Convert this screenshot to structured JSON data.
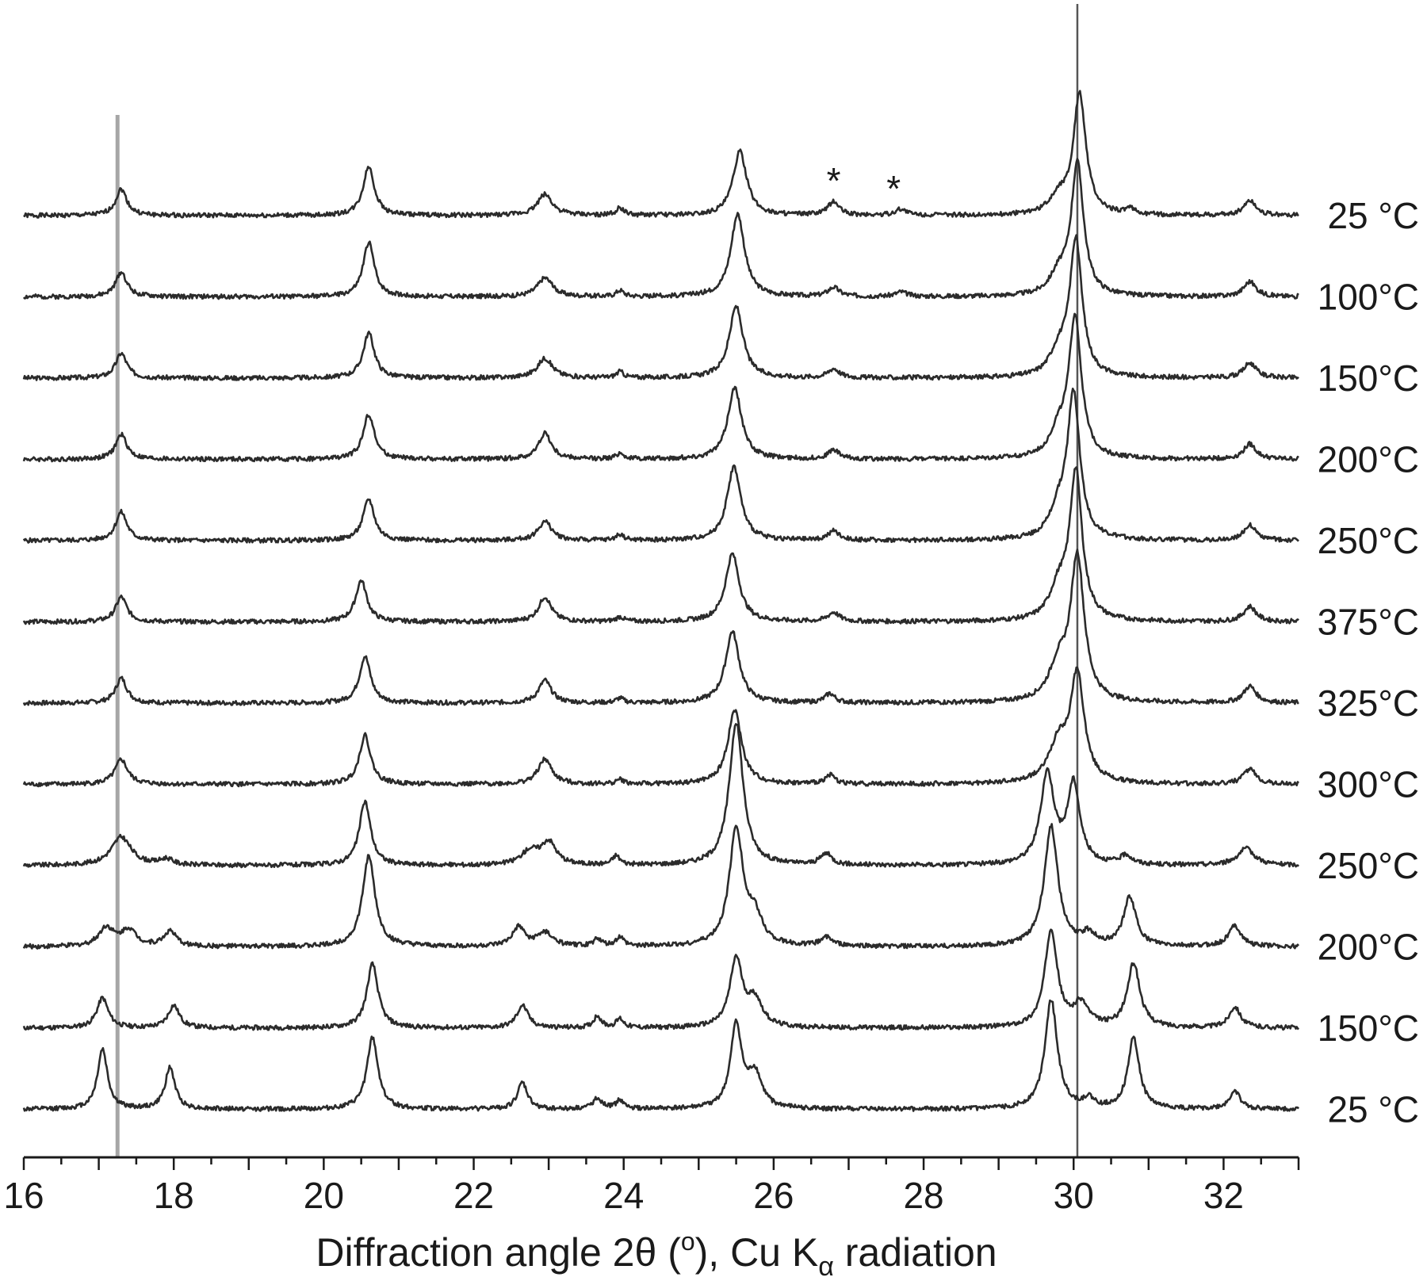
{
  "chart_data": {
    "type": "line",
    "title": "",
    "xlabel": {
      "parts": [
        "Diffraction angle 2θ (",
        "o",
        "), Cu K",
        "α",
        " radiation"
      ]
    },
    "ylabel": "",
    "xlim": [
      16,
      33
    ],
    "x_ticks": [
      16,
      18,
      20,
      22,
      24,
      26,
      28,
      30,
      32
    ],
    "grid": false,
    "legend": "none",
    "reference_lines_x": [
      17.25,
      30.05
    ],
    "reference_line_colors": [
      "#a6a6a6",
      "#555555"
    ],
    "asterisks": [
      {
        "text": "*",
        "x": 26.8
      },
      {
        "text": "*",
        "x": 27.6
      }
    ],
    "line_color": "#2b2b2b",
    "series": [
      {
        "name": "25 °C",
        "peaks": [
          [
            17.3,
            0.35,
            0.09
          ],
          [
            20.6,
            0.65,
            0.09
          ],
          [
            22.95,
            0.28,
            0.12
          ],
          [
            23.95,
            0.1,
            0.06
          ],
          [
            25.55,
            0.85,
            0.11
          ],
          [
            26.8,
            0.18,
            0.09
          ],
          [
            27.7,
            0.08,
            0.09
          ],
          [
            29.8,
            0.22,
            0.14
          ],
          [
            30.08,
            1.6,
            0.1
          ],
          [
            30.75,
            0.07,
            0.08
          ],
          [
            32.35,
            0.2,
            0.1
          ]
        ]
      },
      {
        "name": "100°C",
        "peaks": [
          [
            17.3,
            0.33,
            0.09
          ],
          [
            20.6,
            0.72,
            0.09
          ],
          [
            22.95,
            0.25,
            0.12
          ],
          [
            23.95,
            0.08,
            0.06
          ],
          [
            25.52,
            1.1,
            0.11
          ],
          [
            26.8,
            0.12,
            0.09
          ],
          [
            27.7,
            0.06,
            0.09
          ],
          [
            29.8,
            0.25,
            0.14
          ],
          [
            30.05,
            1.75,
            0.1
          ],
          [
            32.35,
            0.2,
            0.1
          ]
        ]
      },
      {
        "name": "150°C",
        "peaks": [
          [
            17.3,
            0.33,
            0.09
          ],
          [
            20.6,
            0.6,
            0.09
          ],
          [
            22.95,
            0.26,
            0.12
          ],
          [
            23.95,
            0.08,
            0.06
          ],
          [
            25.5,
            0.95,
            0.11
          ],
          [
            26.8,
            0.12,
            0.09
          ],
          [
            29.8,
            0.3,
            0.14
          ],
          [
            30.03,
            1.8,
            0.1
          ],
          [
            32.35,
            0.2,
            0.1
          ]
        ]
      },
      {
        "name": "200°C",
        "peaks": [
          [
            17.3,
            0.33,
            0.09
          ],
          [
            20.6,
            0.6,
            0.09
          ],
          [
            22.95,
            0.35,
            0.1
          ],
          [
            23.95,
            0.08,
            0.06
          ],
          [
            25.48,
            0.95,
            0.11
          ],
          [
            26.8,
            0.12,
            0.09
          ],
          [
            29.8,
            0.32,
            0.14
          ],
          [
            30.02,
            1.85,
            0.1
          ],
          [
            32.35,
            0.2,
            0.1
          ]
        ]
      },
      {
        "name": "250°C",
        "peaks": [
          [
            17.3,
            0.38,
            0.09
          ],
          [
            20.6,
            0.55,
            0.09
          ],
          [
            22.95,
            0.25,
            0.11
          ],
          [
            23.95,
            0.08,
            0.06
          ],
          [
            25.47,
            0.98,
            0.11
          ],
          [
            26.8,
            0.12,
            0.09
          ],
          [
            29.8,
            0.35,
            0.14
          ],
          [
            30.0,
            1.9,
            0.1
          ],
          [
            32.35,
            0.2,
            0.1
          ]
        ]
      },
      {
        "name": "375°C",
        "peaks": [
          [
            17.3,
            0.33,
            0.09
          ],
          [
            20.5,
            0.55,
            0.09
          ],
          [
            22.95,
            0.33,
            0.1
          ],
          [
            23.95,
            0.06,
            0.06
          ],
          [
            25.45,
            0.9,
            0.11
          ],
          [
            26.8,
            0.12,
            0.09
          ],
          [
            29.8,
            0.4,
            0.14
          ],
          [
            30.03,
            1.95,
            0.1
          ],
          [
            32.35,
            0.2,
            0.1
          ]
        ]
      },
      {
        "name": "325°C",
        "peaks": [
          [
            17.3,
            0.33,
            0.09
          ],
          [
            20.55,
            0.62,
            0.09
          ],
          [
            22.95,
            0.3,
            0.1
          ],
          [
            23.95,
            0.06,
            0.06
          ],
          [
            25.45,
            0.95,
            0.11
          ],
          [
            26.75,
            0.12,
            0.08
          ],
          [
            29.8,
            0.45,
            0.15
          ],
          [
            30.05,
            1.9,
            0.11
          ],
          [
            32.35,
            0.22,
            0.1
          ]
        ]
      },
      {
        "name": "300°C",
        "peaks": [
          [
            17.3,
            0.33,
            0.1
          ],
          [
            20.55,
            0.65,
            0.09
          ],
          [
            22.95,
            0.33,
            0.11
          ],
          [
            23.95,
            0.06,
            0.06
          ],
          [
            25.48,
            0.98,
            0.11
          ],
          [
            26.75,
            0.12,
            0.08
          ],
          [
            29.8,
            0.5,
            0.16
          ],
          [
            30.05,
            1.4,
            0.11
          ],
          [
            32.35,
            0.2,
            0.1
          ]
        ]
      },
      {
        "name": "250°C",
        "peaks": [
          [
            17.3,
            0.38,
            0.16
          ],
          [
            17.9,
            0.08,
            0.1
          ],
          [
            20.55,
            0.85,
            0.09
          ],
          [
            22.75,
            0.18,
            0.14
          ],
          [
            23.0,
            0.3,
            0.12
          ],
          [
            23.9,
            0.12,
            0.06
          ],
          [
            25.5,
            1.9,
            0.11
          ],
          [
            26.7,
            0.15,
            0.09
          ],
          [
            29.65,
            1.2,
            0.11
          ],
          [
            30.0,
            1.05,
            0.1
          ],
          [
            30.7,
            0.12,
            0.09
          ],
          [
            32.3,
            0.22,
            0.14
          ]
        ]
      },
      {
        "name": "200°C",
        "peaks": [
          [
            17.1,
            0.25,
            0.12
          ],
          [
            17.4,
            0.22,
            0.12
          ],
          [
            17.95,
            0.2,
            0.1
          ],
          [
            20.6,
            1.2,
            0.1
          ],
          [
            22.6,
            0.25,
            0.1
          ],
          [
            22.95,
            0.18,
            0.12
          ],
          [
            23.65,
            0.1,
            0.06
          ],
          [
            23.95,
            0.12,
            0.06
          ],
          [
            25.5,
            1.55,
            0.11
          ],
          [
            25.75,
            0.35,
            0.12
          ],
          [
            26.7,
            0.12,
            0.09
          ],
          [
            29.7,
            1.6,
            0.11
          ],
          [
            30.2,
            0.15,
            0.1
          ],
          [
            30.75,
            0.65,
            0.1
          ],
          [
            32.15,
            0.28,
            0.1
          ]
        ]
      },
      {
        "name": "150°C",
        "peaks": [
          [
            17.05,
            0.4,
            0.09
          ],
          [
            18.0,
            0.3,
            0.09
          ],
          [
            20.65,
            0.85,
            0.09
          ],
          [
            22.65,
            0.3,
            0.09
          ],
          [
            23.65,
            0.16,
            0.06
          ],
          [
            23.95,
            0.12,
            0.06
          ],
          [
            25.5,
            0.9,
            0.1
          ],
          [
            25.75,
            0.35,
            0.12
          ],
          [
            29.7,
            1.3,
            0.1
          ],
          [
            30.1,
            0.3,
            0.12
          ],
          [
            30.8,
            0.85,
            0.1
          ],
          [
            32.15,
            0.28,
            0.09
          ]
        ]
      },
      {
        "name": "25 °C",
        "peaks": [
          [
            17.05,
            0.8,
            0.08
          ],
          [
            17.95,
            0.55,
            0.08
          ],
          [
            20.65,
            0.95,
            0.09
          ],
          [
            22.65,
            0.35,
            0.08
          ],
          [
            23.65,
            0.15,
            0.07
          ],
          [
            23.95,
            0.12,
            0.06
          ],
          [
            25.5,
            1.1,
            0.09
          ],
          [
            25.75,
            0.45,
            0.11
          ],
          [
            29.7,
            1.45,
            0.1
          ],
          [
            30.2,
            0.12,
            0.08
          ],
          [
            30.8,
            0.95,
            0.09
          ],
          [
            32.15,
            0.25,
            0.08
          ]
        ]
      }
    ]
  }
}
